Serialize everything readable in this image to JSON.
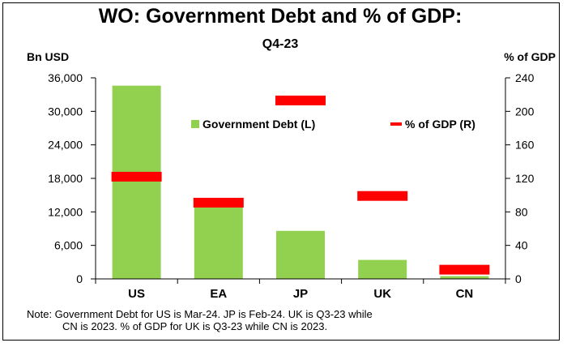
{
  "chart_data": {
    "type": "bar",
    "title_line1": "WO: Government Debt and % of GDP:",
    "title_line2": "Q4-23",
    "ylabel_left": "Bn USD",
    "ylabel_right": "% of GDP",
    "categories": [
      "US",
      "EA",
      "JP",
      "UK",
      "CN"
    ],
    "series": [
      {
        "name": "Government Debt (L)",
        "type": "bar",
        "axis": "left",
        "color": "#92d050",
        "values": [
          34600,
          12900,
          8600,
          3400,
          500
        ]
      },
      {
        "name": "% of GDP (R)",
        "type": "marker",
        "axis": "right",
        "color": "#ff0000",
        "values": [
          122,
          91,
          213,
          99,
          11
        ]
      }
    ],
    "ylim_left": [
      0,
      36000
    ],
    "yticks_left": [
      "0",
      "6,000",
      "12,000",
      "18,000",
      "24,000",
      "30,000",
      "36,000"
    ],
    "ylim_right": [
      0,
      240
    ],
    "yticks_right": [
      "0",
      "40",
      "80",
      "120",
      "160",
      "200",
      "240"
    ],
    "grid": false,
    "legend_position": "top-center"
  },
  "note": {
    "line1": "Note: Government Debt for US is Mar-24. JP is Feb-24. UK is Q3-23 while",
    "line2": "CN is 2023. % of GDP for UK is Q3-23 while CN is 2023."
  }
}
